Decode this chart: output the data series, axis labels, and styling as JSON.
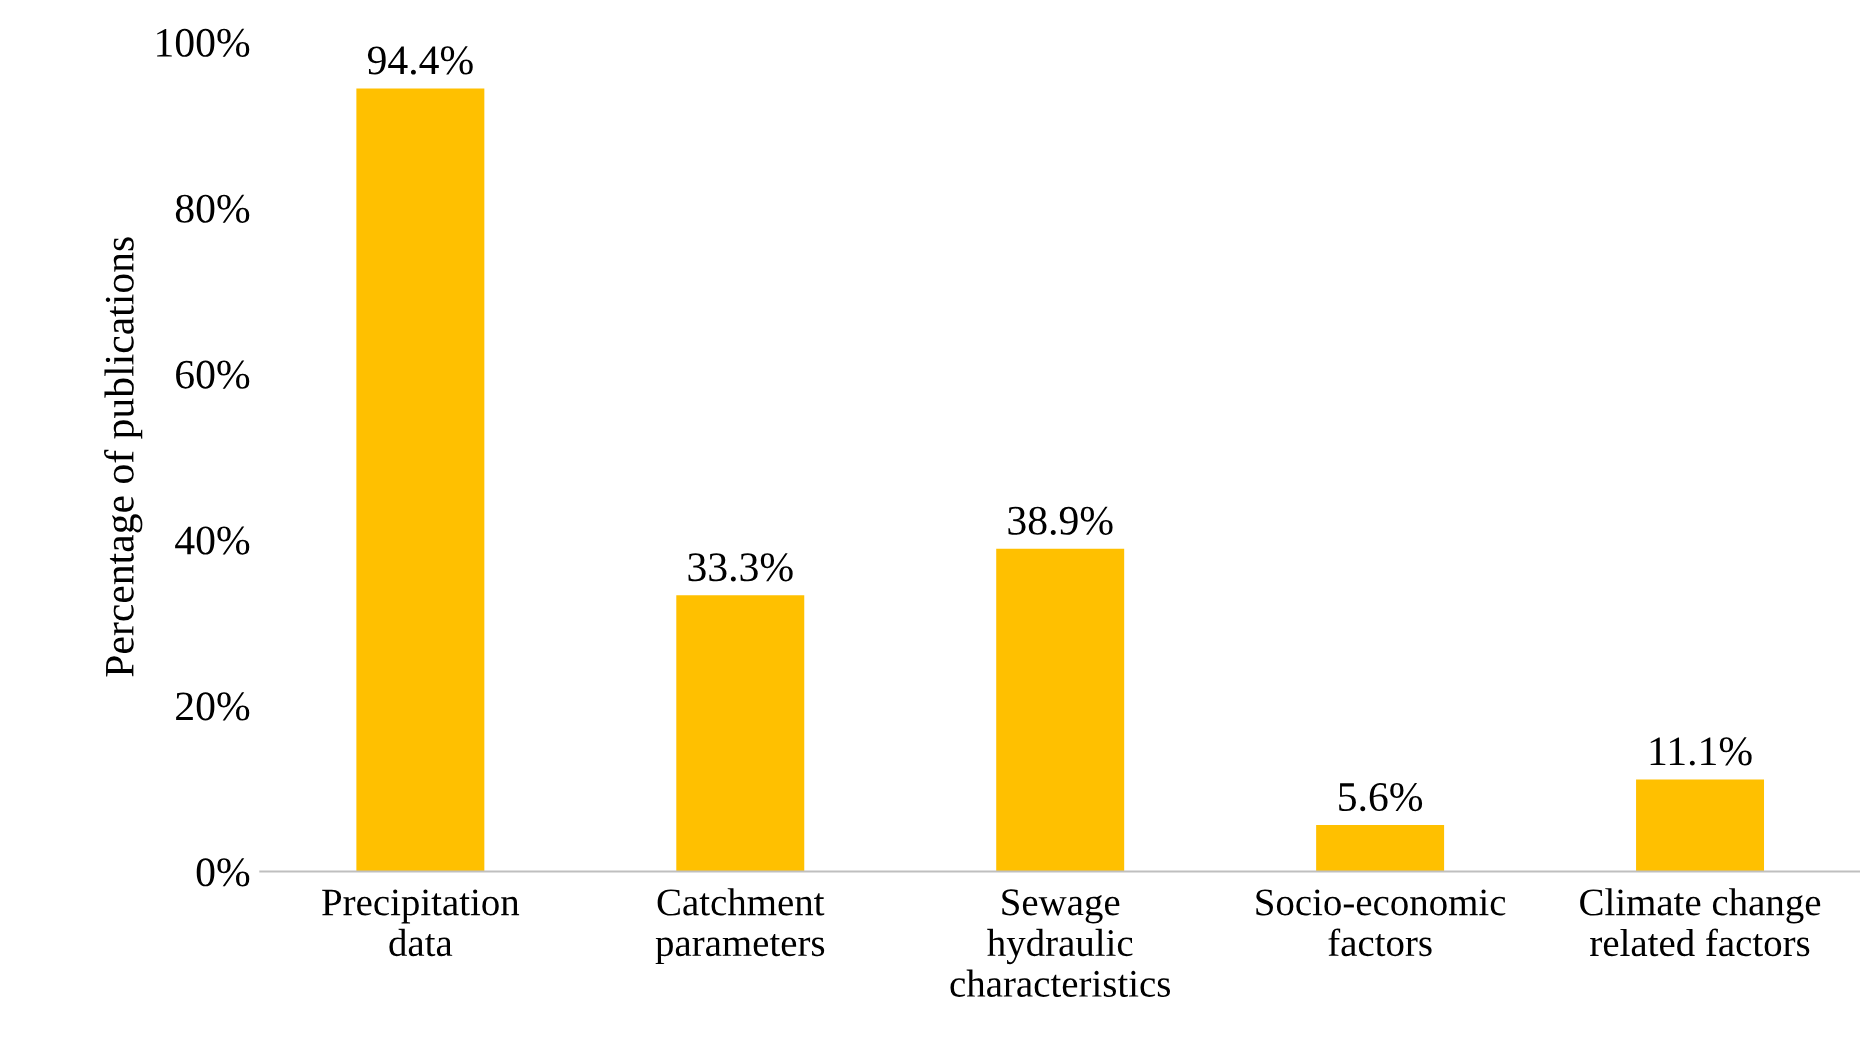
{
  "chart_data": {
    "type": "bar",
    "ylabel": "Percentage of publications",
    "categories": [
      "Precipitation\ndata",
      "Catchment\nparameters",
      "Sewage\nhydraulic\ncharacteristics",
      "Socio-economic\nfactors",
      "Climate change\nrelated factors"
    ],
    "values": [
      94.4,
      33.3,
      38.9,
      5.6,
      11.1
    ],
    "value_labels": [
      "94.4%",
      "33.3%",
      "38.9%",
      "5.6%",
      "11.1%"
    ],
    "color": "#ffc000",
    "ylim": [
      0,
      100
    ],
    "yticks": [
      {
        "value": 0,
        "label": "0%"
      },
      {
        "value": 20,
        "label": "20%"
      },
      {
        "value": 40,
        "label": "40%"
      },
      {
        "value": 60,
        "label": "60%"
      },
      {
        "value": 80,
        "label": "80%"
      },
      {
        "value": 100,
        "label": "100%"
      }
    ],
    "grid": false,
    "legend": false
  }
}
